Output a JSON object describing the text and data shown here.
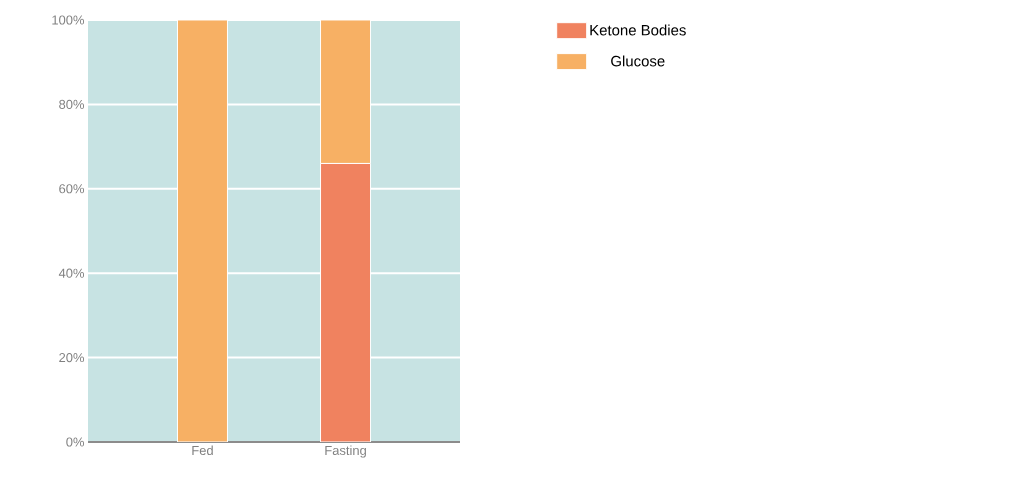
{
  "chart_data": {
    "type": "bar",
    "stacked": true,
    "categories": [
      "Fed",
      "Fasting"
    ],
    "series": [
      {
        "name": "Ketone Bodies",
        "color": "#f0825f",
        "values": [
          0,
          66
        ]
      },
      {
        "name": "Glucose",
        "color": "#f7b064",
        "values": [
          100,
          34
        ]
      }
    ],
    "ylim": [
      0,
      100
    ],
    "yticks": [
      {
        "value": 0,
        "label": "0%"
      },
      {
        "value": 20,
        "label": "20%"
      },
      {
        "value": 40,
        "label": "40%"
      },
      {
        "value": 60,
        "label": "60%"
      },
      {
        "value": 80,
        "label": "80%"
      },
      {
        "value": 100,
        "label": "100%"
      }
    ],
    "grid": "y",
    "legend": "top right"
  }
}
